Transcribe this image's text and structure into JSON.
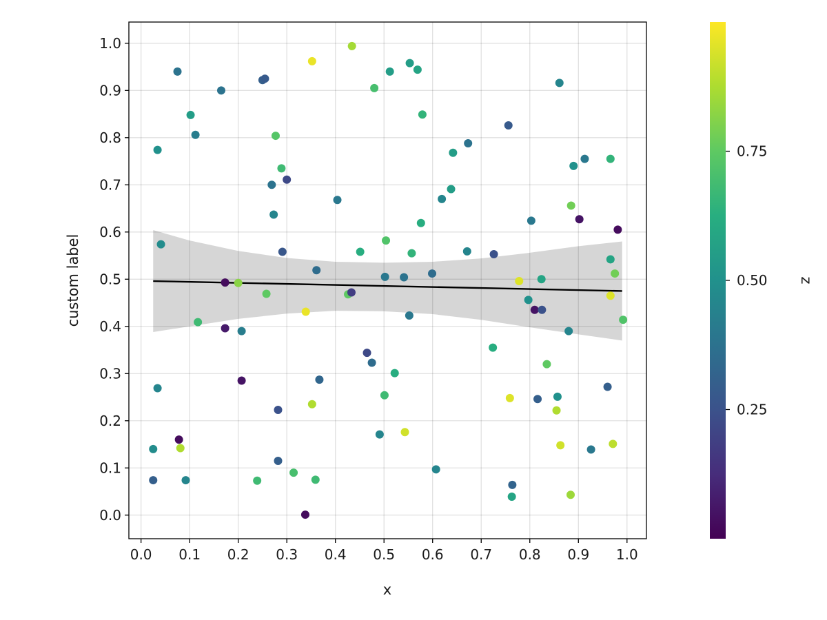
{
  "chart_data": {
    "type": "scatter",
    "title": "",
    "xlabel": "x",
    "ylabel": "custom label",
    "xlim": [
      -0.025,
      1.04
    ],
    "ylim": [
      -0.05,
      1.045
    ],
    "xticks": [
      "0.0",
      "0.1",
      "0.2",
      "0.3",
      "0.4",
      "0.5",
      "0.6",
      "0.7",
      "0.8",
      "0.9",
      "1.0"
    ],
    "yticks": [
      "0.0",
      "0.1",
      "0.2",
      "0.3",
      "0.4",
      "0.5",
      "0.6",
      "0.7",
      "0.8",
      "0.9",
      "1.0"
    ],
    "grid": true,
    "colormap": "viridis",
    "colorbar": {
      "label": "z",
      "range": [
        0.0,
        1.0
      ],
      "ticks": [
        "0.25",
        "0.50",
        "0.75"
      ]
    },
    "fit": {
      "x": [
        0.025,
        0.99
      ],
      "y": [
        0.496,
        0.475
      ],
      "band": {
        "x": [
          0.025,
          0.1,
          0.2,
          0.3,
          0.4,
          0.5,
          0.6,
          0.7,
          0.8,
          0.9,
          0.99
        ],
        "upper": [
          0.604,
          0.582,
          0.56,
          0.545,
          0.537,
          0.535,
          0.537,
          0.544,
          0.556,
          0.57,
          0.58
        ],
        "lower": [
          0.388,
          0.4,
          0.416,
          0.427,
          0.433,
          0.432,
          0.426,
          0.414,
          0.398,
          0.383,
          0.37
        ]
      }
    },
    "points": [
      {
        "x": 0.075,
        "y": 0.94,
        "z": 0.38
      },
      {
        "x": 0.165,
        "y": 0.9,
        "z": 0.38
      },
      {
        "x": 0.25,
        "y": 0.922,
        "z": 0.3
      },
      {
        "x": 0.255,
        "y": 0.925,
        "z": 0.28
      },
      {
        "x": 0.352,
        "y": 0.962,
        "z": 0.97
      },
      {
        "x": 0.434,
        "y": 0.994,
        "z": 0.86
      },
      {
        "x": 0.48,
        "y": 0.905,
        "z": 0.7
      },
      {
        "x": 0.512,
        "y": 0.94,
        "z": 0.55
      },
      {
        "x": 0.553,
        "y": 0.958,
        "z": 0.55
      },
      {
        "x": 0.569,
        "y": 0.944,
        "z": 0.58
      },
      {
        "x": 0.861,
        "y": 0.916,
        "z": 0.45
      },
      {
        "x": 0.102,
        "y": 0.848,
        "z": 0.55
      },
      {
        "x": 0.112,
        "y": 0.806,
        "z": 0.42
      },
      {
        "x": 0.277,
        "y": 0.804,
        "z": 0.73
      },
      {
        "x": 0.579,
        "y": 0.849,
        "z": 0.65
      },
      {
        "x": 0.756,
        "y": 0.826,
        "z": 0.28
      },
      {
        "x": 0.034,
        "y": 0.774,
        "z": 0.5
      },
      {
        "x": 0.289,
        "y": 0.735,
        "z": 0.68
      },
      {
        "x": 0.642,
        "y": 0.768,
        "z": 0.55
      },
      {
        "x": 0.673,
        "y": 0.788,
        "z": 0.38
      },
      {
        "x": 0.269,
        "y": 0.7,
        "z": 0.38
      },
      {
        "x": 0.3,
        "y": 0.711,
        "z": 0.22
      },
      {
        "x": 0.89,
        "y": 0.74,
        "z": 0.5
      },
      {
        "x": 0.913,
        "y": 0.755,
        "z": 0.4
      },
      {
        "x": 0.966,
        "y": 0.755,
        "z": 0.65
      },
      {
        "x": 0.404,
        "y": 0.668,
        "z": 0.4
      },
      {
        "x": 0.619,
        "y": 0.67,
        "z": 0.45
      },
      {
        "x": 0.638,
        "y": 0.691,
        "z": 0.55
      },
      {
        "x": 0.273,
        "y": 0.637,
        "z": 0.45
      },
      {
        "x": 0.885,
        "y": 0.656,
        "z": 0.78
      },
      {
        "x": 0.576,
        "y": 0.619,
        "z": 0.62
      },
      {
        "x": 0.803,
        "y": 0.624,
        "z": 0.4
      },
      {
        "x": 0.902,
        "y": 0.627,
        "z": 0.05
      },
      {
        "x": 0.981,
        "y": 0.605,
        "z": 0.03
      },
      {
        "x": 0.041,
        "y": 0.574,
        "z": 0.48
      },
      {
        "x": 0.504,
        "y": 0.582,
        "z": 0.72
      },
      {
        "x": 0.291,
        "y": 0.558,
        "z": 0.27
      },
      {
        "x": 0.451,
        "y": 0.558,
        "z": 0.62
      },
      {
        "x": 0.557,
        "y": 0.555,
        "z": 0.65
      },
      {
        "x": 0.671,
        "y": 0.559,
        "z": 0.45
      },
      {
        "x": 0.726,
        "y": 0.553,
        "z": 0.25
      },
      {
        "x": 0.966,
        "y": 0.542,
        "z": 0.58
      },
      {
        "x": 0.361,
        "y": 0.519,
        "z": 0.35
      },
      {
        "x": 0.599,
        "y": 0.512,
        "z": 0.35
      },
      {
        "x": 0.975,
        "y": 0.512,
        "z": 0.78
      },
      {
        "x": 0.502,
        "y": 0.505,
        "z": 0.4
      },
      {
        "x": 0.541,
        "y": 0.504,
        "z": 0.38
      },
      {
        "x": 0.173,
        "y": 0.493,
        "z": 0.03
      },
      {
        "x": 0.2,
        "y": 0.492,
        "z": 0.82
      },
      {
        "x": 0.778,
        "y": 0.496,
        "z": 0.95
      },
      {
        "x": 0.824,
        "y": 0.5,
        "z": 0.58
      },
      {
        "x": 0.258,
        "y": 0.469,
        "z": 0.75
      },
      {
        "x": 0.426,
        "y": 0.468,
        "z": 0.75
      },
      {
        "x": 0.433,
        "y": 0.472,
        "z": 0.18
      },
      {
        "x": 0.797,
        "y": 0.456,
        "z": 0.5
      },
      {
        "x": 0.81,
        "y": 0.435,
        "z": 0.05
      },
      {
        "x": 0.825,
        "y": 0.435,
        "z": 0.25
      },
      {
        "x": 0.966,
        "y": 0.465,
        "z": 0.95
      },
      {
        "x": 0.992,
        "y": 0.414,
        "z": 0.72
      },
      {
        "x": 0.339,
        "y": 0.431,
        "z": 0.97
      },
      {
        "x": 0.552,
        "y": 0.423,
        "z": 0.4
      },
      {
        "x": 0.117,
        "y": 0.409,
        "z": 0.68
      },
      {
        "x": 0.173,
        "y": 0.396,
        "z": 0.07
      },
      {
        "x": 0.207,
        "y": 0.39,
        "z": 0.42
      },
      {
        "x": 0.88,
        "y": 0.39,
        "z": 0.45
      },
      {
        "x": 0.724,
        "y": 0.355,
        "z": 0.62
      },
      {
        "x": 0.465,
        "y": 0.344,
        "z": 0.22
      },
      {
        "x": 0.475,
        "y": 0.323,
        "z": 0.35
      },
      {
        "x": 0.835,
        "y": 0.32,
        "z": 0.75
      },
      {
        "x": 0.522,
        "y": 0.301,
        "z": 0.62
      },
      {
        "x": 0.207,
        "y": 0.285,
        "z": 0.05
      },
      {
        "x": 0.367,
        "y": 0.287,
        "z": 0.33
      },
      {
        "x": 0.034,
        "y": 0.269,
        "z": 0.45
      },
      {
        "x": 0.96,
        "y": 0.272,
        "z": 0.3
      },
      {
        "x": 0.501,
        "y": 0.254,
        "z": 0.68
      },
      {
        "x": 0.759,
        "y": 0.248,
        "z": 0.95
      },
      {
        "x": 0.816,
        "y": 0.246,
        "z": 0.3
      },
      {
        "x": 0.857,
        "y": 0.251,
        "z": 0.5
      },
      {
        "x": 0.352,
        "y": 0.235,
        "z": 0.88
      },
      {
        "x": 0.282,
        "y": 0.223,
        "z": 0.25
      },
      {
        "x": 0.855,
        "y": 0.222,
        "z": 0.88
      },
      {
        "x": 0.491,
        "y": 0.171,
        "z": 0.45
      },
      {
        "x": 0.543,
        "y": 0.176,
        "z": 0.93
      },
      {
        "x": 0.078,
        "y": 0.16,
        "z": 0.03
      },
      {
        "x": 0.025,
        "y": 0.14,
        "z": 0.48
      },
      {
        "x": 0.081,
        "y": 0.142,
        "z": 0.88
      },
      {
        "x": 0.863,
        "y": 0.148,
        "z": 0.93
      },
      {
        "x": 0.926,
        "y": 0.139,
        "z": 0.4
      },
      {
        "x": 0.971,
        "y": 0.151,
        "z": 0.9
      },
      {
        "x": 0.282,
        "y": 0.115,
        "z": 0.3
      },
      {
        "x": 0.607,
        "y": 0.097,
        "z": 0.45
      },
      {
        "x": 0.314,
        "y": 0.09,
        "z": 0.7
      },
      {
        "x": 0.025,
        "y": 0.074,
        "z": 0.3
      },
      {
        "x": 0.092,
        "y": 0.074,
        "z": 0.45
      },
      {
        "x": 0.239,
        "y": 0.073,
        "z": 0.68
      },
      {
        "x": 0.359,
        "y": 0.075,
        "z": 0.68
      },
      {
        "x": 0.764,
        "y": 0.064,
        "z": 0.32
      },
      {
        "x": 0.763,
        "y": 0.039,
        "z": 0.58
      },
      {
        "x": 0.884,
        "y": 0.043,
        "z": 0.85
      },
      {
        "x": 0.338,
        "y": 0.001,
        "z": 0.03
      }
    ]
  }
}
